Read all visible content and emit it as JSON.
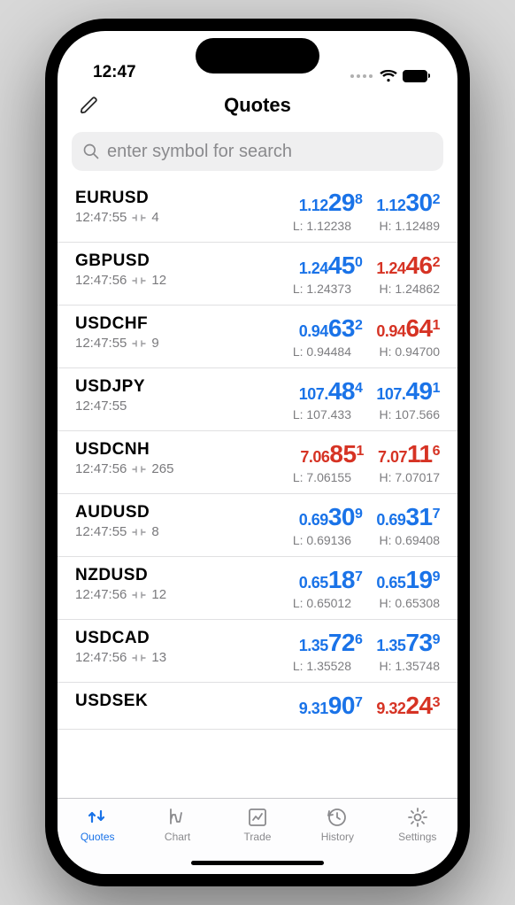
{
  "status": {
    "time": "12:47"
  },
  "header": {
    "title": "Quotes"
  },
  "search": {
    "placeholder": "enter symbol for search"
  },
  "colors": {
    "up": "#1a73e8",
    "down": "#d63324",
    "muted": "#7d7d80"
  },
  "tabs": [
    {
      "label": "Quotes",
      "icon": "quotes",
      "active": true
    },
    {
      "label": "Chart",
      "icon": "chart",
      "active": false
    },
    {
      "label": "Trade",
      "icon": "trade",
      "active": false
    },
    {
      "label": "History",
      "icon": "history",
      "active": false
    },
    {
      "label": "Settings",
      "icon": "settings",
      "active": false
    }
  ],
  "quotes": [
    {
      "symbol": "EURUSD",
      "time": "12:47:55",
      "spread": "4",
      "bid": {
        "pre": "1.12",
        "big": "29",
        "sup": "8",
        "dir": "up"
      },
      "ask": {
        "pre": "1.12",
        "big": "30",
        "sup": "2",
        "dir": "up"
      },
      "low": "1.12238",
      "high": "1.12489"
    },
    {
      "symbol": "GBPUSD",
      "time": "12:47:56",
      "spread": "12",
      "bid": {
        "pre": "1.24",
        "big": "45",
        "sup": "0",
        "dir": "up"
      },
      "ask": {
        "pre": "1.24",
        "big": "46",
        "sup": "2",
        "dir": "down"
      },
      "low": "1.24373",
      "high": "1.24862"
    },
    {
      "symbol": "USDCHF",
      "time": "12:47:55",
      "spread": "9",
      "bid": {
        "pre": "0.94",
        "big": "63",
        "sup": "2",
        "dir": "up"
      },
      "ask": {
        "pre": "0.94",
        "big": "64",
        "sup": "1",
        "dir": "down"
      },
      "low": "0.94484",
      "high": "0.94700"
    },
    {
      "symbol": "USDJPY",
      "time": "12:47:55",
      "spread": "",
      "bid": {
        "pre": "107.",
        "big": "48",
        "sup": "4",
        "dir": "up"
      },
      "ask": {
        "pre": "107.",
        "big": "49",
        "sup": "1",
        "dir": "up"
      },
      "low": "107.433",
      "high": "107.566"
    },
    {
      "symbol": "USDCNH",
      "time": "12:47:56",
      "spread": "265",
      "bid": {
        "pre": "7.06",
        "big": "85",
        "sup": "1",
        "dir": "down"
      },
      "ask": {
        "pre": "7.07",
        "big": "11",
        "sup": "6",
        "dir": "down"
      },
      "low": "7.06155",
      "high": "7.07017"
    },
    {
      "symbol": "AUDUSD",
      "time": "12:47:55",
      "spread": "8",
      "bid": {
        "pre": "0.69",
        "big": "30",
        "sup": "9",
        "dir": "up"
      },
      "ask": {
        "pre": "0.69",
        "big": "31",
        "sup": "7",
        "dir": "up"
      },
      "low": "0.69136",
      "high": "0.69408"
    },
    {
      "symbol": "NZDUSD",
      "time": "12:47:56",
      "spread": "12",
      "bid": {
        "pre": "0.65",
        "big": "18",
        "sup": "7",
        "dir": "up"
      },
      "ask": {
        "pre": "0.65",
        "big": "19",
        "sup": "9",
        "dir": "up"
      },
      "low": "0.65012",
      "high": "0.65308"
    },
    {
      "symbol": "USDCAD",
      "time": "12:47:56",
      "spread": "13",
      "bid": {
        "pre": "1.35",
        "big": "72",
        "sup": "6",
        "dir": "up"
      },
      "ask": {
        "pre": "1.35",
        "big": "73",
        "sup": "9",
        "dir": "up"
      },
      "low": "1.35528",
      "high": "1.35748"
    },
    {
      "symbol": "USDSEK",
      "time": "",
      "spread": "",
      "bid": {
        "pre": "9.31",
        "big": "90",
        "sup": "7",
        "dir": "up"
      },
      "ask": {
        "pre": "9.32",
        "big": "24",
        "sup": "3",
        "dir": "down"
      },
      "low": "",
      "high": ""
    }
  ]
}
